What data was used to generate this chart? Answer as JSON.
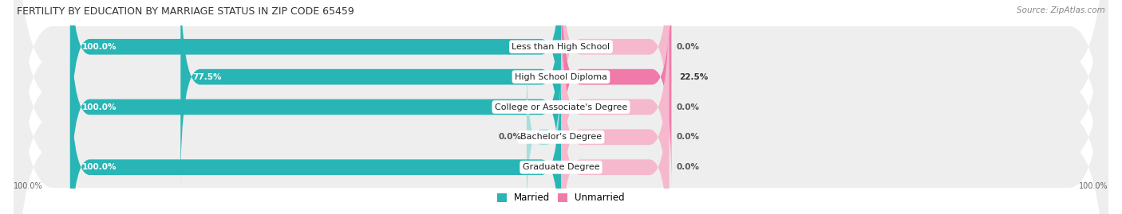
{
  "title": "FERTILITY BY EDUCATION BY MARRIAGE STATUS IN ZIP CODE 65459",
  "source": "Source: ZipAtlas.com",
  "categories": [
    "Less than High School",
    "High School Diploma",
    "College or Associate's Degree",
    "Bachelor's Degree",
    "Graduate Degree"
  ],
  "married": [
    100.0,
    77.5,
    100.0,
    0.0,
    100.0
  ],
  "unmarried": [
    0.0,
    22.5,
    0.0,
    0.0,
    0.0
  ],
  "married_color": "#29b5b5",
  "unmarried_color": "#f07aaa",
  "married_light_color": "#a8dede",
  "unmarried_light_color": "#f5b8cc",
  "bg_color": "#ffffff",
  "row_bg_color": "#eeeeee",
  "axis_label_left": "100.0%",
  "axis_label_right": "100.0%",
  "legend_married": "Married",
  "legend_unmarried": "Unmarried",
  "title_fontsize": 9.0,
  "source_fontsize": 7.5,
  "label_fontsize": 8.0,
  "value_fontsize": 7.5
}
